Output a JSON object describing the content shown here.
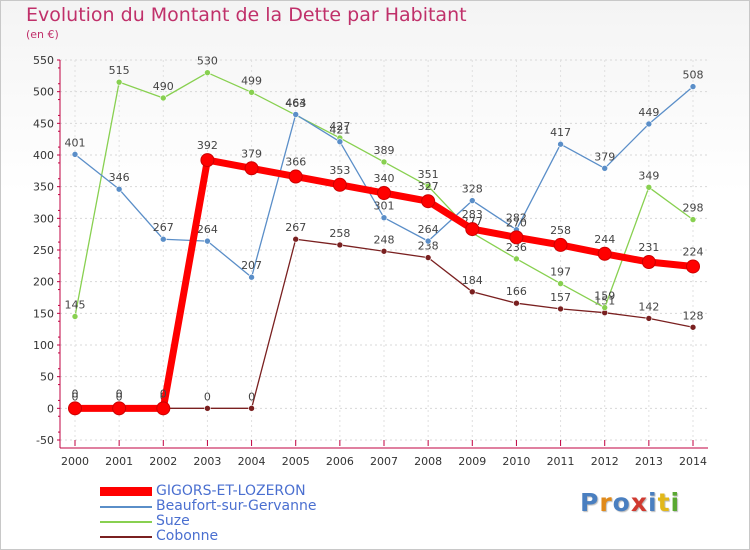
{
  "chart_data": {
    "type": "line",
    "title": "Evolution du Montant de la Dette par Habitant",
    "subtitle": "(en €)",
    "xlabel": "",
    "ylabel": "",
    "ylim": [
      -50,
      550
    ],
    "ytick_step": 50,
    "grid": true,
    "legend_position": "bottom-left",
    "x": [
      2000,
      2001,
      2002,
      2003,
      2004,
      2005,
      2006,
      2007,
      2008,
      2009,
      2010,
      2011,
      2012,
      2013,
      2014
    ],
    "series": [
      {
        "name": "Cobonne",
        "color": "#7a2020",
        "values": [
          0,
          0,
          0,
          0,
          0,
          267,
          258,
          248,
          238,
          184,
          166,
          157,
          151,
          142,
          128
        ]
      },
      {
        "name": "Suze",
        "color": "#88d050",
        "values": [
          145,
          515,
          490,
          530,
          499,
          463,
          427,
          389,
          351,
          277,
          236,
          197,
          159,
          349,
          298
        ]
      },
      {
        "name": "Beaufort-sur-Gervanne",
        "color": "#5a8ec8",
        "values": [
          401,
          346,
          267,
          264,
          207,
          464,
          421,
          301,
          264,
          328,
          282,
          417,
          379,
          449,
          508
        ]
      },
      {
        "name": "GIGORS-ET-LOZERON",
        "color": "#ff0000",
        "values": [
          0,
          0,
          0,
          392,
          379,
          366,
          353,
          340,
          327,
          283,
          270,
          258,
          244,
          231,
          224
        ]
      }
    ],
    "legend": [
      "GIGORS-ET-LOZERON",
      "Beaufort-sur-Gervanne",
      "Suze",
      "Cobonne"
    ]
  },
  "logo": {
    "letters": [
      "P",
      "r",
      "o",
      "x",
      "i",
      "t",
      "i"
    ]
  }
}
